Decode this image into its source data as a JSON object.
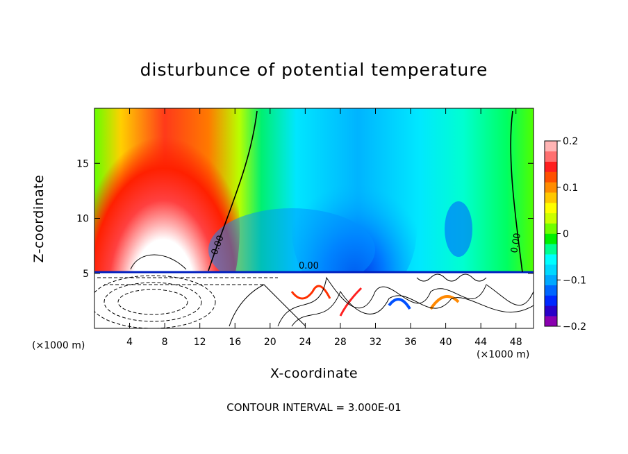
{
  "figure": {
    "title": "disturbunce of potential temperature",
    "x_unit": "(×1000 m)",
    "contour_note": "CONTOUR INTERVAL = 3.000E-01"
  },
  "chart_data": {
    "type": "heatmap",
    "title": "disturbunce of potential temperature",
    "xlabel": "X-coordinate",
    "ylabel": "Z-coordinate",
    "x_unit": "(×1000 m)",
    "xlim": [
      0,
      50
    ],
    "ylim": [
      0,
      20
    ],
    "xticks": [
      4,
      8,
      12,
      16,
      20,
      24,
      28,
      32,
      36,
      40,
      44,
      48
    ],
    "yticks": [
      5,
      10,
      15
    ],
    "colorbar": {
      "range": [
        -0.2,
        0.2
      ],
      "ticks": [
        -0.2,
        -0.1,
        0,
        0.1,
        0.2
      ],
      "tick_labels": [
        "−0.2",
        "−0.1",
        "0",
        "0.1",
        "0.2"
      ],
      "colors": [
        "#8a00b0",
        "#2a00c8",
        "#0028ff",
        "#0066ff",
        "#00a8ff",
        "#00d8ff",
        "#00ffff",
        "#00ff90",
        "#00f000",
        "#70ff00",
        "#ccff00",
        "#ffff00",
        "#ffc800",
        "#ff8c00",
        "#ff5000",
        "#ff1e1e",
        "#ff7070",
        "#ffb4b4"
      ]
    },
    "contour_labels": [
      "0.00",
      "0.00",
      "0.00"
    ],
    "contour_interval": "CONTOUR INTERVAL = 3.000E-01"
  }
}
